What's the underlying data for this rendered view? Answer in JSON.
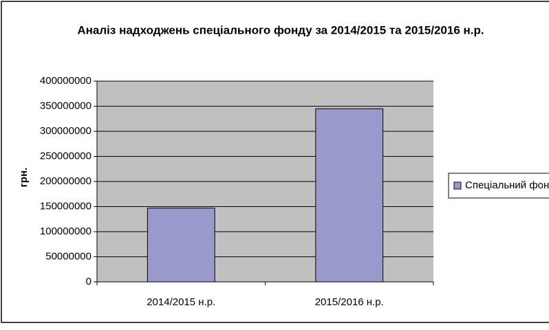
{
  "chart_data": {
    "type": "bar",
    "title": "Аналіз надходжень спеціального фонду за 2014/2015 та 2015/2016 н.р.",
    "y_label": "грн.",
    "categories": [
      "2014/2015 н.р.",
      "2015/2016 н.р."
    ],
    "series": [
      {
        "name": "Спеціальний фонд",
        "color": "#9999cc",
        "values": [
          147000000,
          345000000
        ]
      }
    ],
    "ylim": [
      0,
      400000000
    ],
    "yticks": [
      0,
      50000000,
      100000000,
      150000000,
      200000000,
      250000000,
      300000000,
      350000000,
      400000000
    ],
    "grid": true,
    "legend": "right"
  }
}
